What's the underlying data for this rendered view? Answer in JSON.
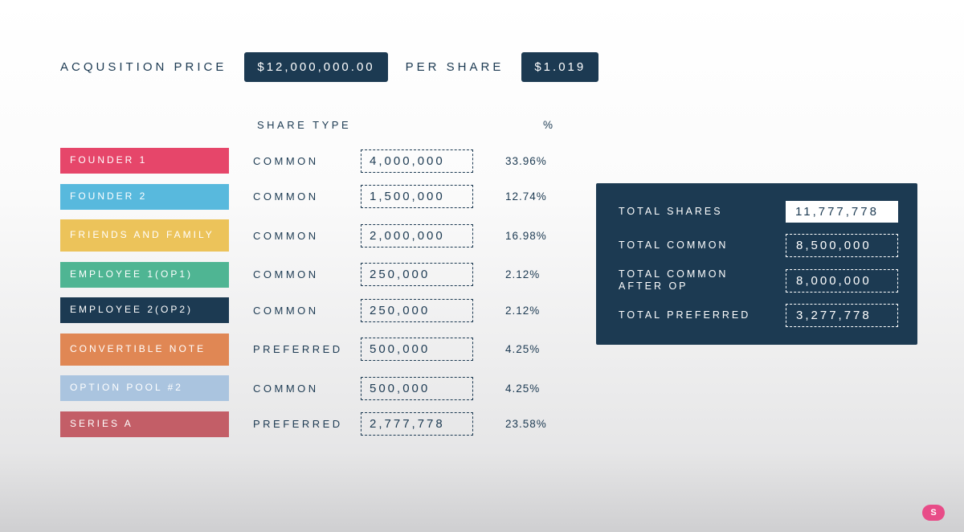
{
  "colors": {
    "text": "#1c3a52",
    "panel": "#1c3a52",
    "white": "#ffffff",
    "badge": "#e84c88"
  },
  "header": {
    "acq_label": "ACQUSITION PRICE",
    "acq_value": "$12,000,000.00",
    "per_share_label": "PER SHARE",
    "per_share_value": "$1.019"
  },
  "columns": {
    "share_type": "SHARE TYPE",
    "percent": "%"
  },
  "rows": [
    {
      "name": "FOUNDER 1",
      "share_type": "COMMON",
      "shares": "4,000,000",
      "pct": "33.96%",
      "color": "#e6466a",
      "two_line": false
    },
    {
      "name": "FOUNDER 2",
      "share_type": "COMMON",
      "shares": "1,500,000",
      "pct": "12.74%",
      "color": "#58b9dd",
      "two_line": false
    },
    {
      "name": "FRIENDS AND FAMILY",
      "share_type": "COMMON",
      "shares": "2,000,000",
      "pct": "16.98%",
      "color": "#ecc35a",
      "two_line": true
    },
    {
      "name": "EMPLOYEE 1(OP1)",
      "share_type": "COMMON",
      "shares": "250,000",
      "pct": "2.12%",
      "color": "#4fb593",
      "two_line": false
    },
    {
      "name": "EMPLOYEE 2(OP2)",
      "share_type": "COMMON",
      "shares": "250,000",
      "pct": "2.12%",
      "color": "#1c3a52",
      "two_line": false
    },
    {
      "name": "CONVERTIBLE NOTE",
      "share_type": "PREFERRED",
      "shares": "500,000",
      "pct": "4.25%",
      "color": "#e08754",
      "two_line": true
    },
    {
      "name": "OPTION POOL #2",
      "share_type": "COMMON",
      "shares": "500,000",
      "pct": "4.25%",
      "color": "#aac4df",
      "two_line": false
    },
    {
      "name": "SERIES A",
      "share_type": "PREFERRED",
      "shares": "2,777,778",
      "pct": "23.58%",
      "color": "#c35e67",
      "two_line": false
    }
  ],
  "totals": [
    {
      "label": "TOTAL SHARES",
      "value": "11,777,778",
      "style": "solid"
    },
    {
      "label": "TOTAL COMMON",
      "value": "8,500,000",
      "style": "dashed"
    },
    {
      "label": "TOTAL COMMON AFTER OP",
      "value": "8,000,000",
      "style": "dashed"
    },
    {
      "label": "TOTAL PREFERRED",
      "value": "3,277,778",
      "style": "dashed"
    }
  ],
  "badge": {
    "text": "S"
  }
}
